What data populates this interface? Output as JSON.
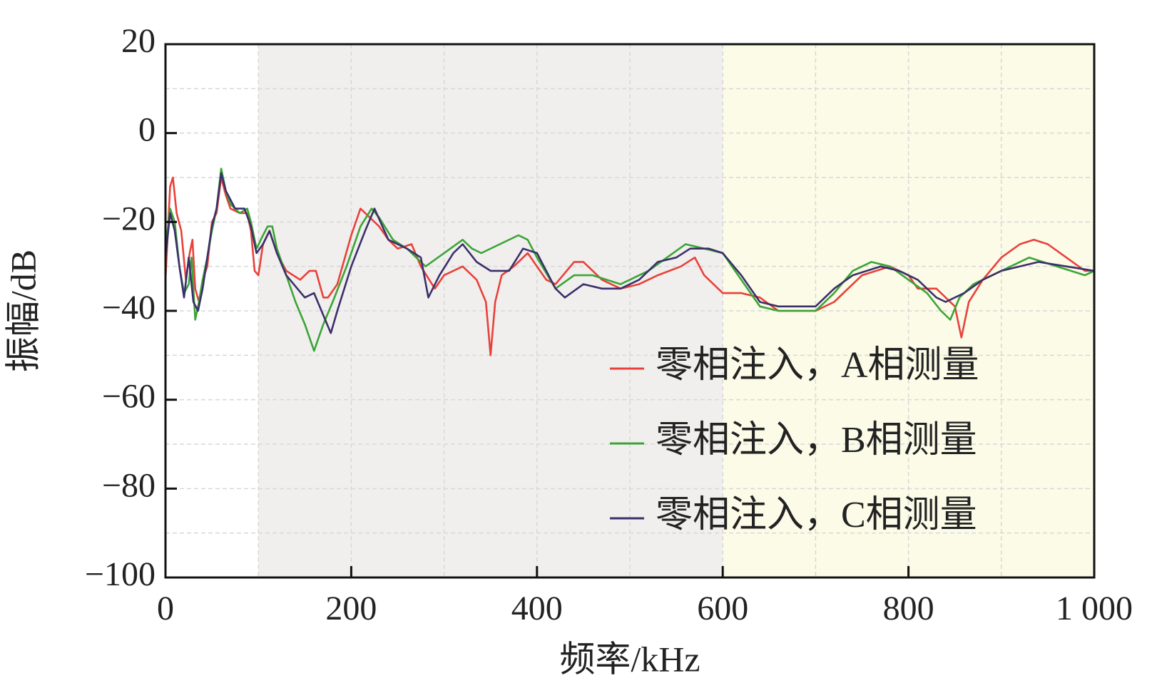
{
  "chart_data": {
    "type": "line",
    "x_label": "频率/kHz",
    "y_label": "振幅/dB",
    "xlim": [
      0,
      1000
    ],
    "ylim": [
      -100,
      20
    ],
    "xticks": [
      0,
      200,
      400,
      600,
      800,
      {
        "value": 1000,
        "label": "1 000"
      }
    ],
    "yticks": [
      20,
      0,
      {
        "value": -20,
        "label": "−20"
      },
      {
        "value": -40,
        "label": "−40"
      },
      {
        "value": -60,
        "label": "−60"
      },
      {
        "value": -80,
        "label": "−80"
      },
      {
        "value": -100,
        "label": "−100"
      }
    ],
    "x_minor_ticks": [
      100,
      300,
      500,
      700,
      900
    ],
    "y_minor_ticks": [
      10,
      -10,
      -30,
      -50,
      -70,
      -90
    ],
    "grid": true,
    "legend": "lower right",
    "shaded_regions": [
      {
        "xlim": [
          100,
          600
        ],
        "color": "#f1efee"
      },
      {
        "xlim": [
          600,
          1000
        ],
        "color": "#fbfbe8"
      }
    ],
    "series": [
      {
        "name": "零相注入，A相测量",
        "color": "#e8413a",
        "x": [
          0,
          5,
          8,
          12,
          17,
          22,
          26,
          29,
          32,
          36,
          40,
          45,
          50,
          55,
          60,
          65,
          70,
          80,
          88,
          92,
          96,
          100,
          105,
          112,
          120,
          130,
          145,
          155,
          162,
          170,
          175,
          185,
          200,
          210,
          220,
          230,
          240,
          250,
          265,
          275,
          290,
          300,
          320,
          335,
          345,
          350,
          355,
          362,
          375,
          390,
          400,
          410,
          420,
          440,
          450,
          470,
          490,
          510,
          530,
          555,
          570,
          580,
          600,
          620,
          640,
          660,
          680,
          700,
          720,
          750,
          780,
          800,
          810,
          830,
          840,
          850,
          857,
          865,
          880,
          900,
          920,
          935,
          950,
          970,
          990,
          1000
        ],
        "values": [
          -33,
          -12,
          -10,
          -18,
          -22,
          -33,
          -27,
          -24,
          -35,
          -38,
          -33,
          -30,
          -20,
          -18,
          -10,
          -14,
          -17,
          -18,
          -18,
          -22,
          -31,
          -32,
          -25,
          -22,
          -27,
          -31,
          -33,
          -31,
          -31,
          -37,
          -37,
          -34,
          -23,
          -17,
          -19,
          -21,
          -24,
          -26,
          -25,
          -30,
          -35,
          -32,
          -30,
          -33,
          -38,
          -50,
          -38,
          -32,
          -30,
          -27,
          -30,
          -33,
          -34,
          -29,
          -29,
          -33,
          -35,
          -34,
          -32,
          -30,
          -28,
          -32,
          -36,
          -36,
          -37,
          -40,
          -40,
          -40,
          -38,
          -32,
          -30,
          -32,
          -35,
          -35,
          -37,
          -39,
          -46,
          -38,
          -33,
          -28,
          -25,
          -24,
          -25,
          -28,
          -31,
          -31
        ]
      },
      {
        "name": "零相注入，B相测量",
        "color": "#3aa535",
        "x": [
          0,
          5,
          10,
          15,
          20,
          25,
          28,
          32,
          36,
          40,
          45,
          50,
          55,
          60,
          65,
          70,
          80,
          88,
          92,
          98,
          105,
          110,
          115,
          120,
          130,
          140,
          150,
          160,
          170,
          180,
          195,
          210,
          222,
          230,
          245,
          260,
          280,
          300,
          320,
          330,
          340,
          360,
          380,
          390,
          400,
          420,
          440,
          460,
          490,
          520,
          540,
          560,
          580,
          600,
          620,
          640,
          660,
          700,
          720,
          740,
          760,
          780,
          800,
          820,
          835,
          845,
          855,
          870,
          900,
          930,
          960,
          990,
          1000
        ],
        "values": [
          -26,
          -17,
          -20,
          -30,
          -36,
          -34,
          -28,
          -42,
          -38,
          -33,
          -28,
          -22,
          -17,
          -8,
          -13,
          -16,
          -18,
          -17,
          -20,
          -26,
          -23,
          -21,
          -21,
          -26,
          -32,
          -38,
          -43,
          -49,
          -43,
          -38,
          -30,
          -21,
          -17,
          -19,
          -24,
          -26,
          -30,
          -27,
          -24,
          -26,
          -27,
          -25,
          -23,
          -24,
          -28,
          -35,
          -32,
          -32,
          -34,
          -31,
          -28,
          -25,
          -26,
          -27,
          -33,
          -39,
          -40,
          -40,
          -36,
          -31,
          -29,
          -30,
          -33,
          -36,
          -40,
          -42,
          -37,
          -34,
          -31,
          -28,
          -30,
          -32,
          -31
        ]
      },
      {
        "name": "零相注入，C相测量",
        "color": "#3b2f6b",
        "x": [
          0,
          5,
          10,
          15,
          20,
          25,
          30,
          35,
          40,
          50,
          55,
          60,
          65,
          75,
          85,
          92,
          98,
          105,
          112,
          120,
          130,
          150,
          160,
          170,
          178,
          185,
          200,
          215,
          225,
          240,
          260,
          275,
          283,
          295,
          310,
          320,
          335,
          350,
          370,
          385,
          400,
          420,
          430,
          450,
          470,
          490,
          510,
          530,
          550,
          565,
          585,
          600,
          620,
          640,
          660,
          700,
          720,
          740,
          770,
          790,
          810,
          830,
          840,
          860,
          880,
          900,
          940,
          970,
          1000
        ],
        "values": [
          -28,
          -18,
          -22,
          -30,
          -37,
          -28,
          -38,
          -40,
          -35,
          -21,
          -17,
          -9,
          -13,
          -17,
          -17,
          -21,
          -27,
          -25,
          -22,
          -27,
          -32,
          -37,
          -36,
          -41,
          -45,
          -40,
          -30,
          -22,
          -17,
          -24,
          -26,
          -28,
          -37,
          -32,
          -27,
          -25,
          -29,
          -31,
          -31,
          -26,
          -27,
          -35,
          -37,
          -34,
          -35,
          -35,
          -33,
          -29,
          -28,
          -26,
          -26,
          -27,
          -32,
          -38,
          -39,
          -39,
          -35,
          -32,
          -30,
          -31,
          -33,
          -37,
          -38,
          -36,
          -33,
          -31,
          -29,
          -30,
          -31
        ]
      }
    ]
  }
}
